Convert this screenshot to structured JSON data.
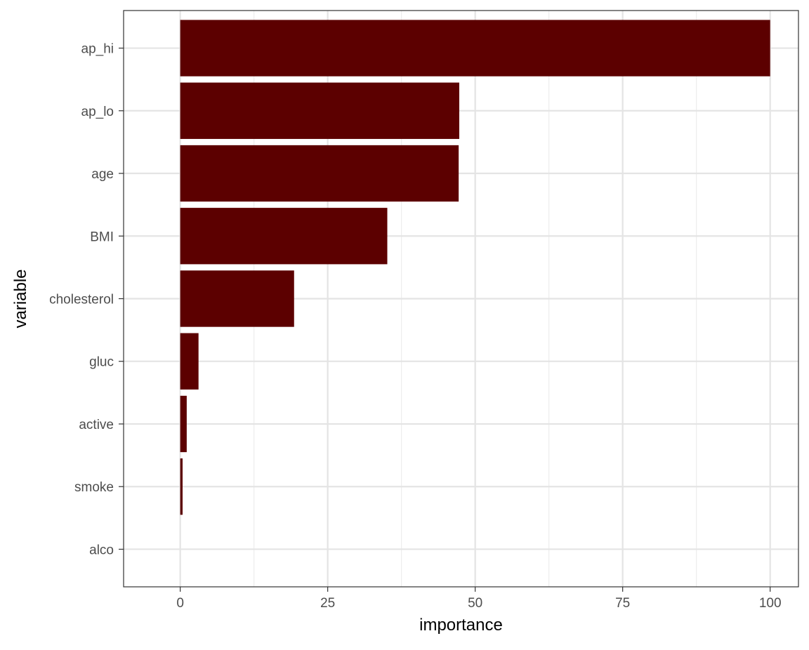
{
  "chart_data": {
    "type": "bar",
    "orientation": "horizontal",
    "title": "",
    "xlabel": "importance",
    "ylabel": "variable",
    "xlim": [
      -9.6,
      104.8
    ],
    "xticks": [
      0,
      25,
      50,
      75,
      100
    ],
    "xtick_labels": [
      "0",
      "25",
      "50",
      "75",
      "100"
    ],
    "categories": [
      "ap_hi",
      "ap_lo",
      "age",
      "BMI",
      "cholesterol",
      "gluc",
      "active",
      "smoke",
      "alco"
    ],
    "values": [
      100,
      47.3,
      47.2,
      35.1,
      19.3,
      3.1,
      1.1,
      0.4,
      0.0
    ],
    "bar_color": "#5c0000",
    "grid": true,
    "legend": "none"
  }
}
